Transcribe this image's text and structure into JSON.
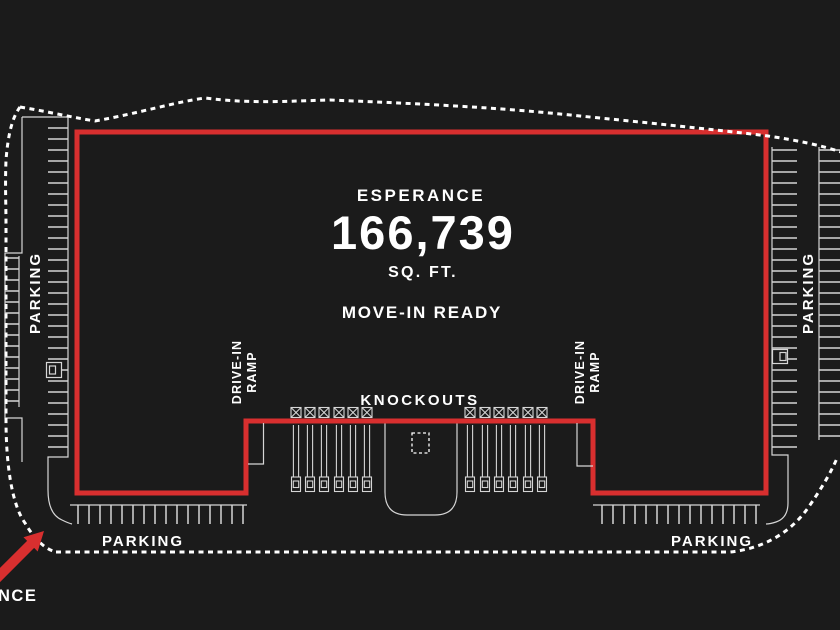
{
  "plan": {
    "title": "ESPERANCE",
    "area_value": "166,739",
    "area_unit": "SQ. FT.",
    "status": "MOVE-IN READY",
    "labels": {
      "knockouts": "KNOCKOUTS",
      "drive_in_line1": "DRIVE-IN",
      "drive_in_line2": "RAMP",
      "parking": "PARKING",
      "entrance_visible_text": "NCE"
    },
    "colors": {
      "background": "#1b1b1b",
      "building_outline": "#d82f2f",
      "entrance_arrow": "#d82f2f",
      "site_linework": "#d6d6d6",
      "boundary_dashed": "#ffffff",
      "text": "#ffffff"
    }
  }
}
